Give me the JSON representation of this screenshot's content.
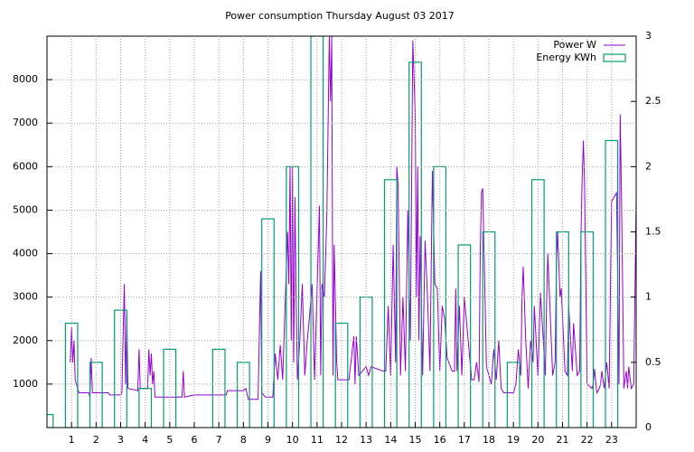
{
  "chart_data": {
    "type": "combo",
    "title": "Power consumption Thursday August 03 2017",
    "xlim": [
      0,
      24
    ],
    "xticks": [
      1,
      2,
      3,
      4,
      5,
      6,
      7,
      8,
      9,
      10,
      11,
      12,
      13,
      14,
      15,
      16,
      17,
      18,
      19,
      20,
      21,
      22,
      23
    ],
    "ylim": [
      0,
      9000
    ],
    "yticks": [
      1000,
      2000,
      3000,
      4000,
      5000,
      6000,
      7000,
      8000
    ],
    "y2lim": [
      0,
      3
    ],
    "y2ticks": [
      0,
      0.5,
      1,
      1.5,
      2,
      2.5,
      3
    ],
    "grid": true,
    "legend": "top-right",
    "series": [
      {
        "name": "Power W",
        "type": "line",
        "color": "#9400d3",
        "x": [
          0.95,
          1.0,
          1.05,
          1.1,
          1.15,
          1.2,
          1.3,
          1.7,
          1.75,
          1.8,
          1.85,
          2.5,
          2.55,
          3.0,
          3.05,
          3.1,
          3.15,
          3.2,
          3.25,
          3.3,
          3.7,
          3.75,
          3.8,
          4.1,
          4.15,
          4.2,
          4.25,
          4.3,
          4.35,
          4.4,
          5.0,
          5.5,
          5.55,
          5.6,
          6.0,
          7.0,
          7.3,
          7.35,
          8.0,
          8.1,
          8.2,
          8.6,
          8.7,
          8.75,
          8.9,
          9.2,
          9.3,
          9.4,
          9.5,
          9.6,
          9.8,
          9.85,
          9.9,
          9.95,
          10.0,
          10.05,
          10.1,
          10.15,
          10.2,
          10.3,
          10.4,
          10.5,
          10.6,
          10.7,
          10.8,
          10.9,
          11.1,
          11.15,
          11.2,
          11.3,
          11.4,
          11.5,
          11.55,
          11.6,
          11.65,
          11.7,
          11.8,
          11.85,
          11.9,
          12.3,
          12.4,
          12.5,
          12.55,
          12.6,
          12.7,
          13.0,
          13.1,
          13.2,
          13.7,
          13.8,
          13.9,
          14.0,
          14.1,
          14.2,
          14.25,
          14.3,
          14.4,
          14.5,
          14.6,
          14.7,
          14.8,
          14.9,
          15.0,
          15.05,
          15.1,
          15.15,
          15.2,
          15.3,
          15.4,
          15.5,
          15.6,
          15.7,
          15.8,
          15.9,
          16.0,
          16.1,
          16.2,
          16.3,
          16.5,
          16.6,
          16.65,
          16.7,
          16.8,
          16.9,
          17.0,
          17.3,
          17.4,
          17.5,
          17.6,
          17.65,
          17.7,
          17.75,
          17.9,
          18.0,
          18.1,
          18.2,
          18.3,
          18.4,
          18.5,
          18.6,
          19.0,
          19.1,
          19.2,
          19.3,
          19.35,
          19.4,
          19.5,
          19.6,
          19.7,
          19.8,
          19.85,
          20.0,
          20.1,
          20.3,
          20.35,
          20.4,
          20.6,
          20.7,
          20.75,
          20.8,
          20.9,
          20.95,
          21.1,
          21.2,
          21.25,
          21.4,
          21.45,
          21.6,
          21.7,
          21.75,
          21.8,
          21.85,
          21.9,
          22.0,
          22.2,
          22.25,
          22.3,
          22.4,
          22.5,
          22.55,
          22.6,
          22.7,
          22.8,
          22.9,
          23.0,
          23.2,
          23.3,
          23.35,
          23.4,
          23.5,
          23.6,
          23.65,
          23.7,
          23.8,
          23.9,
          24.0
        ],
        "values": [
          1500,
          2300,
          1500,
          2000,
          1100,
          1000,
          800,
          800,
          700,
          1600,
          800,
          800,
          750,
          750,
          800,
          2100,
          3300,
          1000,
          2600,
          900,
          850,
          1800,
          900,
          900,
          1800,
          1200,
          1700,
          1000,
          1300,
          700,
          700,
          700,
          1300,
          700,
          750,
          750,
          750,
          850,
          850,
          900,
          650,
          650,
          3600,
          800,
          700,
          700,
          1700,
          1100,
          1900,
          1100,
          4500,
          3300,
          6000,
          2000,
          6000,
          1500,
          5300,
          3000,
          1100,
          2000,
          3300,
          1200,
          2000,
          2600,
          3300,
          1100,
          5100,
          1200,
          3300,
          3000,
          4900,
          9000,
          7500,
          9000,
          1200,
          4200,
          1500,
          1100,
          1100,
          1100,
          1600,
          2100,
          1000,
          2100,
          1200,
          1400,
          1200,
          1400,
          1300,
          1300,
          2800,
          1200,
          4200,
          1500,
          6000,
          5600,
          1200,
          3000,
          1300,
          5000,
          2000,
          8900,
          7200,
          3000,
          6000,
          2000,
          4400,
          1200,
          4300,
          3000,
          1300,
          5900,
          3300,
          3200,
          1300,
          2800,
          2500,
          1600,
          1300,
          1300,
          3200,
          1300,
          2800,
          1200,
          3000,
          1100,
          1100,
          1500,
          1050,
          4100,
          5400,
          5500,
          1400,
          1200,
          1000,
          1800,
          1100,
          2000,
          900,
          800,
          800,
          1000,
          1800,
          1200,
          3000,
          3700,
          2000,
          900,
          2000,
          1500,
          2800,
          1200,
          3100,
          1200,
          2800,
          4000,
          1200,
          1500,
          3700,
          4500,
          3000,
          3200,
          1300,
          1200,
          2800,
          1300,
          2400,
          1200,
          1300,
          4400,
          5700,
          6600,
          5600,
          1000,
          900,
          1000,
          1350,
          800,
          900,
          1000,
          1300,
          900,
          1500,
          900,
          5200,
          5400,
          1000,
          7200,
          5400,
          900,
          1300,
          900,
          1400,
          900,
          1000,
          5200
        ]
      },
      {
        "name": "Energy KWh",
        "type": "bar",
        "color": "#009e73",
        "axis": "y2",
        "x": [
          0,
          1,
          2,
          3,
          4,
          5,
          6,
          7,
          8,
          9,
          10,
          11,
          12,
          13,
          14,
          15,
          16,
          17,
          18,
          19,
          20,
          21,
          22,
          23
        ],
        "values": [
          0.1,
          0.8,
          0.5,
          0.9,
          0.3,
          0.6,
          0,
          0.6,
          0.5,
          1.6,
          2.0,
          3.0,
          0.8,
          1.0,
          1.9,
          2.8,
          2.0,
          1.4,
          1.5,
          0.5,
          1.9,
          1.5,
          1.5,
          2.2
        ]
      }
    ]
  }
}
